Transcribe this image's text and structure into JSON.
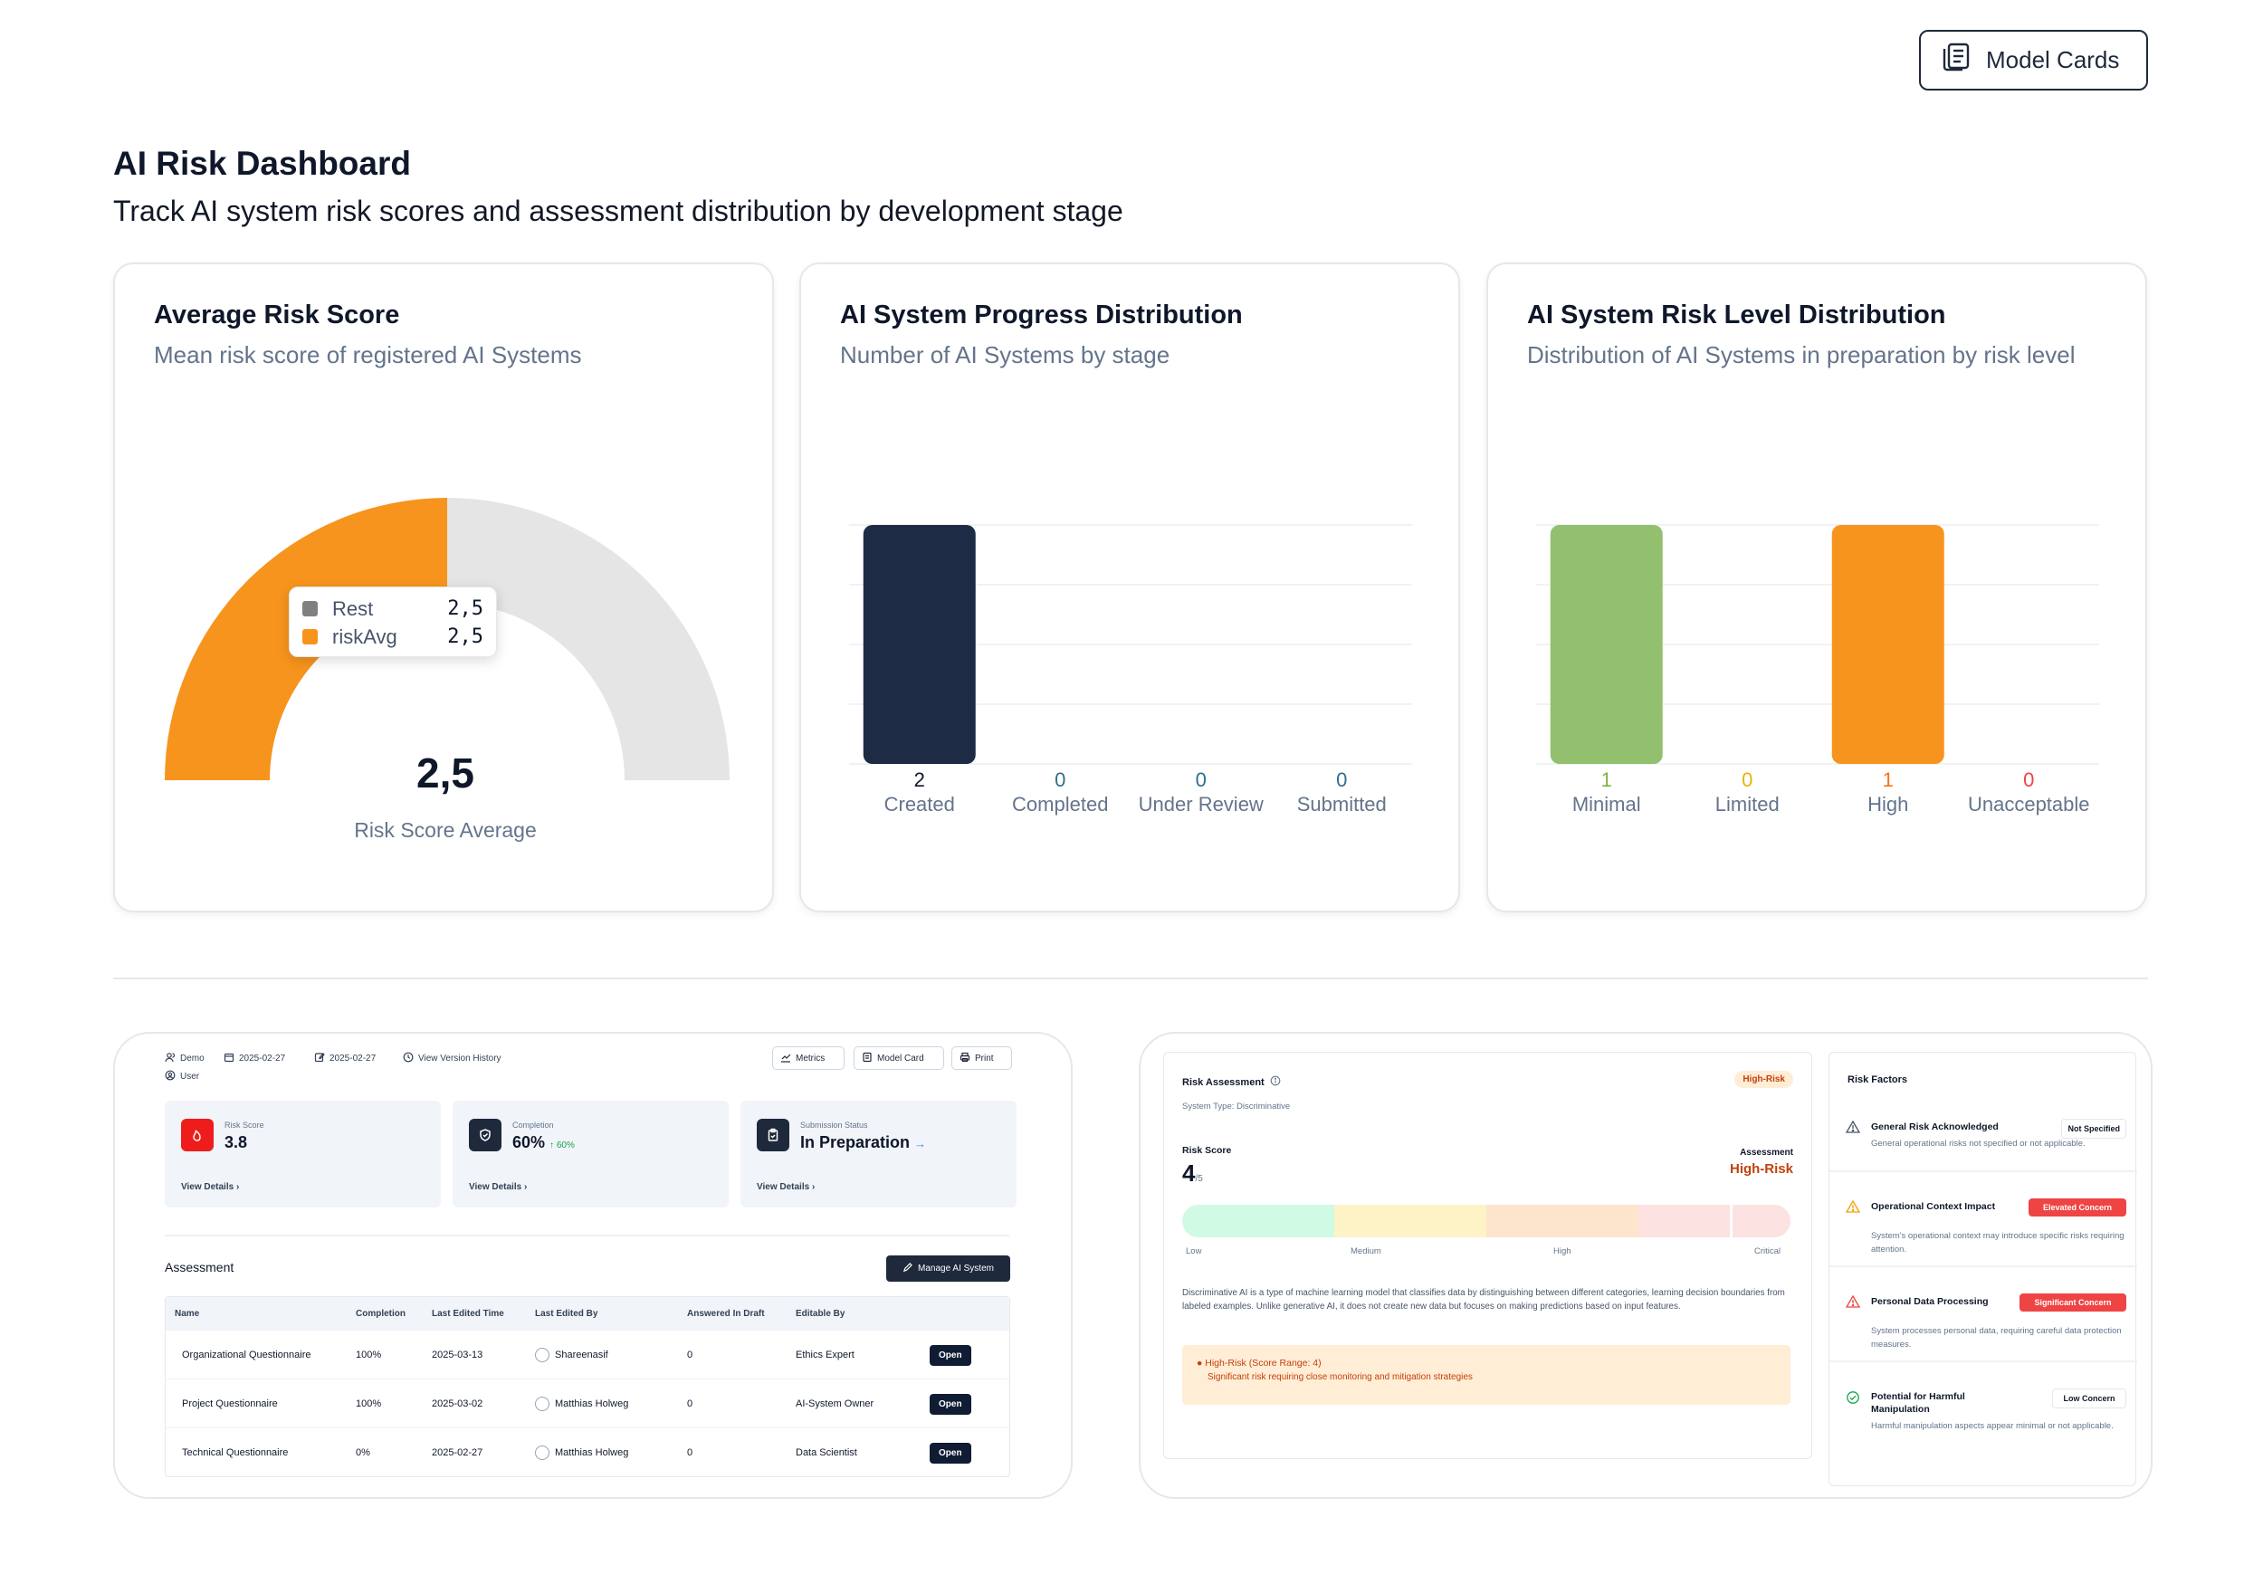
{
  "header": {
    "model_cards_label": "Model Cards",
    "title": "AI Risk Dashboard",
    "subtitle": "Track AI system risk scores and assessment distribution by development stage"
  },
  "cards": {
    "avg_risk": {
      "title": "Average Risk Score",
      "subtitle": "Mean risk score of registered AI Systems",
      "value": "2,5",
      "value_label": "Risk Score Average",
      "tooltip": [
        {
          "name": "Rest",
          "value": "2,5",
          "color": "#808080"
        },
        {
          "name": "riskAvg",
          "value": "2,5",
          "color": "#f7941d"
        }
      ]
    },
    "progress": {
      "title": "AI System Progress Distribution",
      "subtitle": "Number of AI Systems by stage"
    },
    "risk_level": {
      "title": "AI System Risk Level Distribution",
      "subtitle": "Distribution of AI Systems in preparation by risk level"
    }
  },
  "chart_data": [
    {
      "type": "pie",
      "slices": [
        {
          "name": "riskAvg",
          "value": 2.5,
          "color": "#f7941d"
        },
        {
          "name": "Rest",
          "value": 2.5,
          "color": "#e5e5e5"
        }
      ]
    },
    {
      "type": "bar",
      "categories": [
        "Created",
        "Completed",
        "Under Review",
        "Submitted"
      ],
      "values": [
        2,
        0,
        0,
        0
      ],
      "ylim": [
        0,
        2
      ],
      "grid": true,
      "colors": [
        "#1e2b45",
        "#1e2b45",
        "#1e2b45",
        "#1e2b45"
      ],
      "label_colors": [
        "#0f172a",
        "#2f6f8f",
        "#2f6f8f",
        "#2f6f8f"
      ]
    },
    {
      "type": "bar",
      "categories": [
        "Minimal",
        "Limited",
        "High",
        "Unacceptable"
      ],
      "values": [
        1,
        0,
        1,
        0
      ],
      "ylim": [
        0,
        1
      ],
      "grid": true,
      "colors": [
        "#92c06e",
        "#f2b705",
        "#f7941d",
        "#ef4444"
      ],
      "label_colors": [
        "#7cb342",
        "#eab308",
        "#f97316",
        "#ef4444"
      ]
    }
  ],
  "panel_left": {
    "meta": {
      "user": "Demo",
      "created": "2025-02-27",
      "edited": "2025-02-27",
      "history": "View Version History",
      "role": "User"
    },
    "buttons": {
      "metrics": "Metrics",
      "model_card": "Model Card",
      "print": "Print"
    },
    "stats": [
      {
        "label": "Risk Score",
        "value": "3.8",
        "link": "View Details",
        "color": "#ef1c1c"
      },
      {
        "label": "Completion",
        "value": "60%",
        "delta": "60%",
        "link": "View Details",
        "color": "#1e293b"
      },
      {
        "label": "Submission Status",
        "value": "In Preparation",
        "link": "View Details",
        "color": "#1e293b"
      }
    ],
    "assessment_title": "Assessment",
    "manage_label": "Manage AI System",
    "table": {
      "headers": [
        "Name",
        "Completion",
        "Last Edited Time",
        "Last Edited By",
        "Answered In Draft",
        "Editable By",
        ""
      ],
      "rows": [
        {
          "name": "Organizational Questionnaire",
          "completion": "100%",
          "time": "2025-03-13",
          "by": "Shareenasif",
          "draft": "0",
          "editable": "Ethics Expert",
          "action": "Open"
        },
        {
          "name": "Project Questionnaire",
          "completion": "100%",
          "time": "2025-03-02",
          "by": "Matthias Holweg",
          "draft": "0",
          "editable": "AI-System Owner",
          "action": "Open"
        },
        {
          "name": "Technical Questionnaire",
          "completion": "0%",
          "time": "2025-02-27",
          "by": "Matthias Holweg",
          "draft": "0",
          "editable": "Data Scientist",
          "action": "Open"
        }
      ]
    }
  },
  "panel_right": {
    "assessment": {
      "title": "Risk Assessment",
      "badge": "High-Risk",
      "system_type": "System Type: Discriminative",
      "score_label": "Risk Score",
      "score": "4",
      "score_max": "/5",
      "assessment_label": "Assessment",
      "assessment_value": "High-Risk",
      "scale": [
        "Low",
        "Medium",
        "High",
        "Critical"
      ],
      "marker_value": 4,
      "description": "Discriminative AI is a type of machine learning model that classifies data by distinguishing between different categories, learning decision boundaries from labeled examples. Unlike generative AI, it does not create new data but focuses on making predictions based on input features.",
      "alert_title": "High-Risk (Score Range: 4)",
      "alert_text": "Significant risk requiring close monitoring and mitigation strategies"
    },
    "factors": {
      "title": "Risk Factors",
      "items": [
        {
          "name": "General Risk Acknowledged",
          "badge": "Not Specified",
          "desc": "General operational risks not specified or not applicable.",
          "icon": "warning-icon"
        },
        {
          "name": "Operational Context Impact",
          "badge": "Elevated Concern",
          "desc": "System's operational context may introduce specific risks requiring attention.",
          "icon": "warning-icon"
        },
        {
          "name": "Personal Data Processing",
          "badge": "Significant Concern",
          "desc": "System processes personal data, requiring careful data protection measures.",
          "icon": "warning-icon"
        },
        {
          "name": "Potential for Harmful Manipulation",
          "badge": "Low Concern",
          "desc": "Harmful manipulation aspects appear minimal or not applicable.",
          "icon": "check-circle-icon"
        }
      ]
    }
  }
}
